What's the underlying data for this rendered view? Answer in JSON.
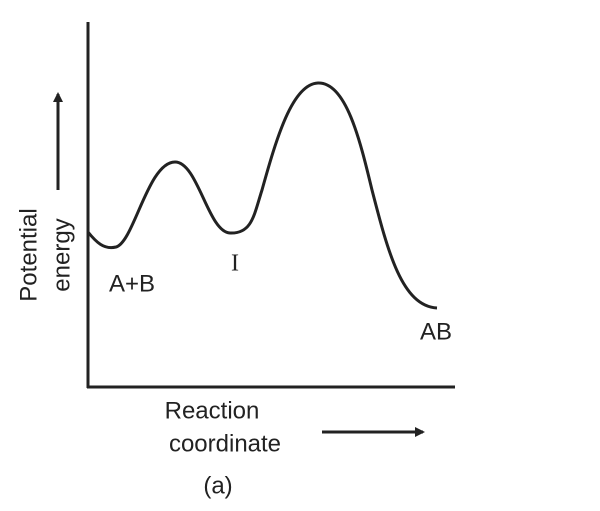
{
  "y_axis_label": {
    "line1": "Potential",
    "line2": "energy"
  },
  "x_axis_label": {
    "line1": "Reaction",
    "line2": "coordinate"
  },
  "curve_labels": {
    "reactants": "A+B",
    "intermediate": "I",
    "product": "AB"
  },
  "caption": "(a)"
}
